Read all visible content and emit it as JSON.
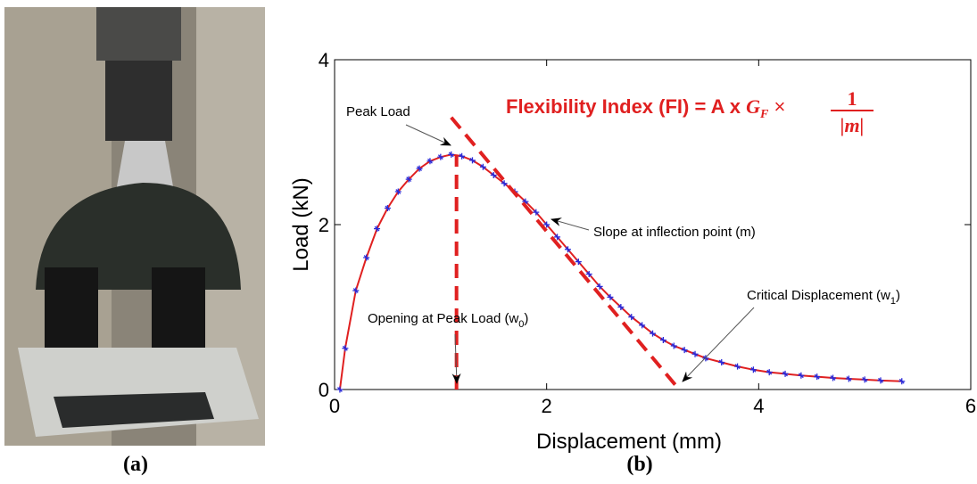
{
  "chart_data": {
    "type": "line",
    "xlabel": "Displacement (mm)",
    "ylabel": "Load (kN)",
    "xlim": [
      0,
      6
    ],
    "ylim": [
      0,
      4
    ],
    "xticks": [
      0,
      2,
      4,
      6
    ],
    "yticks": [
      0,
      2,
      4
    ],
    "grid": false,
    "series": [
      {
        "line_color": "#e02020",
        "marker_color": "#2a2ad8",
        "x": [
          0.05,
          0.1,
          0.2,
          0.3,
          0.4,
          0.5,
          0.6,
          0.7,
          0.8,
          0.9,
          1.0,
          1.1,
          1.2,
          1.3,
          1.4,
          1.5,
          1.6,
          1.7,
          1.8,
          1.9,
          2.0,
          2.1,
          2.2,
          2.3,
          2.4,
          2.5,
          2.6,
          2.7,
          2.8,
          2.9,
          3.0,
          3.1,
          3.2,
          3.3,
          3.4,
          3.5,
          3.65,
          3.8,
          3.95,
          4.1,
          4.25,
          4.4,
          4.55,
          4.7,
          4.85,
          5.0,
          5.15,
          5.35
        ],
        "values": [
          0,
          0.5,
          1.2,
          1.6,
          1.95,
          2.2,
          2.4,
          2.55,
          2.68,
          2.77,
          2.82,
          2.85,
          2.83,
          2.78,
          2.7,
          2.6,
          2.5,
          2.4,
          2.28,
          2.15,
          2.0,
          1.85,
          1.7,
          1.55,
          1.4,
          1.25,
          1.12,
          1.0,
          0.88,
          0.78,
          0.68,
          0.6,
          0.53,
          0.48,
          0.43,
          0.38,
          0.33,
          0.28,
          0.24,
          0.21,
          0.19,
          0.17,
          0.155,
          0.14,
          0.13,
          0.12,
          0.11,
          0.1
        ]
      }
    ],
    "reference_lines": [
      {
        "color": "#e02020",
        "x": [
          1.15,
          1.15
        ],
        "y": [
          0,
          2.85
        ]
      },
      {
        "color": "#e02020",
        "x": [
          1.1,
          3.25
        ],
        "y": [
          3.3,
          0
        ]
      }
    ],
    "annotations": [
      {
        "text": "Peak Load"
      },
      {
        "text": "Slope at inflection point (m)"
      },
      {
        "text": "Opening at Peak Load (w",
        "sub": "0",
        "tail": ")"
      },
      {
        "text": "Critical Displacement (w",
        "sub": "1",
        "tail": ")"
      }
    ],
    "formula": {
      "lead": "Flexibility Index  (FI) = A x ",
      "symbol": "G",
      "symbol_sub": "F",
      "times": " × ",
      "numerator": "1",
      "denominator": "|m|",
      "color": "#e02020"
    }
  },
  "captions": [
    "(a)",
    "(b)"
  ]
}
